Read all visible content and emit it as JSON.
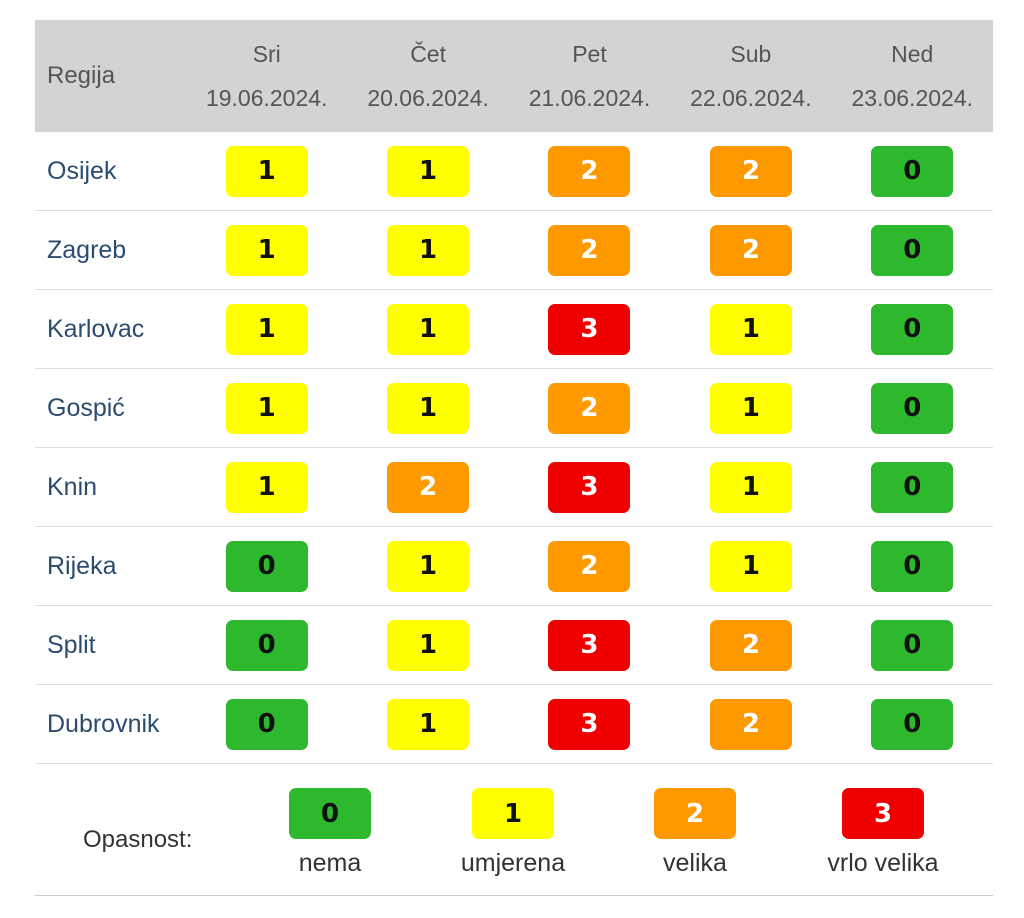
{
  "header": {
    "region_label": "Regija",
    "days": [
      {
        "day": "Sri",
        "date": "19.06.2024."
      },
      {
        "day": "Čet",
        "date": "20.06.2024."
      },
      {
        "day": "Pet",
        "date": "21.06.2024."
      },
      {
        "day": "Sub",
        "date": "22.06.2024."
      },
      {
        "day": "Ned",
        "date": "23.06.2024."
      }
    ]
  },
  "rows": [
    {
      "region": "Osijek",
      "levels": [
        "1",
        "1",
        "2",
        "2",
        "0"
      ]
    },
    {
      "region": "Zagreb",
      "levels": [
        "1",
        "1",
        "2",
        "2",
        "0"
      ]
    },
    {
      "region": "Karlovac",
      "levels": [
        "1",
        "1",
        "3",
        "1",
        "0"
      ]
    },
    {
      "region": "Gospić",
      "levels": [
        "1",
        "1",
        "2",
        "1",
        "0"
      ]
    },
    {
      "region": "Knin",
      "levels": [
        "1",
        "2",
        "3",
        "1",
        "0"
      ]
    },
    {
      "region": "Rijeka",
      "levels": [
        "0",
        "1",
        "2",
        "1",
        "0"
      ]
    },
    {
      "region": "Split",
      "levels": [
        "0",
        "1",
        "3",
        "2",
        "0"
      ]
    },
    {
      "region": "Dubrovnik",
      "levels": [
        "0",
        "1",
        "3",
        "2",
        "0"
      ]
    }
  ],
  "legend": {
    "label": "Opasnost:",
    "items": [
      {
        "value": "0",
        "text": "nema"
      },
      {
        "value": "1",
        "text": "umjerena"
      },
      {
        "value": "2",
        "text": "velika"
      },
      {
        "value": "3",
        "text": "vrlo velika"
      }
    ]
  },
  "colors": {
    "level_0": "#2db82d",
    "level_1": "#ffff00",
    "level_2": "#ff9900",
    "level_3": "#ee0000",
    "header_bg": "#d3d3d3"
  }
}
